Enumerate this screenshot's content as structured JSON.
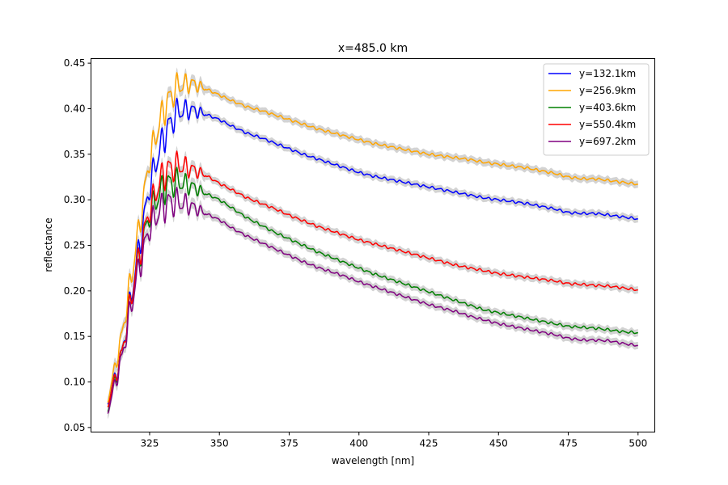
{
  "chart_data": {
    "type": "line",
    "title": "x=485.0 km",
    "xlabel": "wavelength [nm]",
    "ylabel": "reflectance",
    "xlim": [
      304,
      506
    ],
    "ylim": [
      0.045,
      0.455
    ],
    "xticks": [
      325,
      350,
      375,
      400,
      425,
      450,
      475,
      500
    ],
    "yticks": [
      0.05,
      0.1,
      0.15,
      0.2,
      0.25,
      0.3,
      0.35,
      0.4,
      0.45
    ],
    "grid": false,
    "legend_position": "top-right",
    "band_color": "#d3d3d3",
    "series": [
      {
        "name": "y=132.1km",
        "color": "#0000ff",
        "x": [
          310,
          315,
          320,
          325,
          330,
          335,
          340,
          345,
          350,
          355,
          360,
          365,
          370,
          375,
          380,
          385,
          390,
          395,
          400,
          405,
          410,
          415,
          420,
          425,
          430,
          435,
          440,
          445,
          450,
          455,
          460,
          465,
          470,
          475,
          480,
          485,
          490,
          495,
          500
        ],
        "y": [
          0.078,
          0.13,
          0.225,
          0.315,
          0.37,
          0.397,
          0.399,
          0.394,
          0.388,
          0.38,
          0.373,
          0.368,
          0.362,
          0.356,
          0.35,
          0.345,
          0.34,
          0.335,
          0.33,
          0.326,
          0.323,
          0.32,
          0.317,
          0.314,
          0.311,
          0.308,
          0.305,
          0.302,
          0.3,
          0.298,
          0.296,
          0.293,
          0.29,
          0.286,
          0.285,
          0.285,
          0.283,
          0.281,
          0.279
        ]
      },
      {
        "name": "y=256.9km",
        "color": "#ffa500",
        "x": [
          310,
          315,
          320,
          325,
          330,
          335,
          340,
          345,
          350,
          355,
          360,
          365,
          370,
          375,
          380,
          385,
          390,
          395,
          400,
          405,
          410,
          415,
          420,
          425,
          430,
          435,
          440,
          445,
          450,
          455,
          460,
          465,
          470,
          475,
          480,
          485,
          490,
          495,
          500
        ],
        "y": [
          0.08,
          0.15,
          0.245,
          0.345,
          0.4,
          0.425,
          0.428,
          0.422,
          0.415,
          0.408,
          0.402,
          0.398,
          0.393,
          0.388,
          0.383,
          0.378,
          0.374,
          0.37,
          0.366,
          0.362,
          0.359,
          0.356,
          0.353,
          0.35,
          0.348,
          0.346,
          0.344,
          0.341,
          0.339,
          0.337,
          0.335,
          0.332,
          0.329,
          0.325,
          0.323,
          0.323,
          0.321,
          0.319,
          0.317
        ]
      },
      {
        "name": "y=403.6km",
        "color": "#008000",
        "x": [
          310,
          315,
          320,
          325,
          330,
          335,
          340,
          345,
          350,
          355,
          360,
          365,
          370,
          375,
          380,
          385,
          390,
          395,
          400,
          405,
          410,
          415,
          420,
          425,
          430,
          435,
          440,
          445,
          450,
          455,
          460,
          465,
          470,
          475,
          480,
          485,
          490,
          495,
          500
        ],
        "y": [
          0.07,
          0.13,
          0.22,
          0.285,
          0.315,
          0.32,
          0.315,
          0.307,
          0.3,
          0.29,
          0.28,
          0.272,
          0.264,
          0.257,
          0.25,
          0.243,
          0.237,
          0.231,
          0.225,
          0.219,
          0.214,
          0.209,
          0.204,
          0.199,
          0.194,
          0.189,
          0.184,
          0.179,
          0.176,
          0.173,
          0.17,
          0.167,
          0.164,
          0.161,
          0.16,
          0.159,
          0.157,
          0.155,
          0.154
        ]
      },
      {
        "name": "y=550.4km",
        "color": "#ff0000",
        "x": [
          310,
          315,
          320,
          325,
          330,
          335,
          340,
          345,
          350,
          355,
          360,
          365,
          370,
          375,
          380,
          385,
          390,
          395,
          400,
          405,
          410,
          415,
          420,
          425,
          430,
          435,
          440,
          445,
          450,
          455,
          460,
          465,
          470,
          475,
          480,
          485,
          490,
          495,
          500
        ],
        "y": [
          0.075,
          0.13,
          0.22,
          0.29,
          0.33,
          0.338,
          0.334,
          0.327,
          0.318,
          0.31,
          0.302,
          0.296,
          0.29,
          0.283,
          0.277,
          0.271,
          0.266,
          0.261,
          0.256,
          0.252,
          0.248,
          0.244,
          0.24,
          0.236,
          0.232,
          0.228,
          0.225,
          0.222,
          0.219,
          0.217,
          0.215,
          0.213,
          0.211,
          0.208,
          0.207,
          0.206,
          0.205,
          0.203,
          0.201
        ]
      },
      {
        "name": "y=697.2km",
        "color": "#800080",
        "x": [
          310,
          315,
          320,
          325,
          330,
          335,
          340,
          345,
          350,
          355,
          360,
          365,
          370,
          375,
          380,
          385,
          390,
          395,
          400,
          405,
          410,
          415,
          420,
          425,
          430,
          435,
          440,
          445,
          450,
          455,
          460,
          465,
          470,
          475,
          480,
          485,
          490,
          495,
          500
        ],
        "y": [
          0.068,
          0.125,
          0.21,
          0.27,
          0.295,
          0.298,
          0.293,
          0.285,
          0.278,
          0.268,
          0.26,
          0.253,
          0.246,
          0.239,
          0.232,
          0.226,
          0.221,
          0.216,
          0.21,
          0.205,
          0.2,
          0.195,
          0.19,
          0.185,
          0.181,
          0.177,
          0.172,
          0.168,
          0.164,
          0.161,
          0.158,
          0.155,
          0.152,
          0.148,
          0.146,
          0.146,
          0.145,
          0.142,
          0.14
        ]
      }
    ]
  }
}
